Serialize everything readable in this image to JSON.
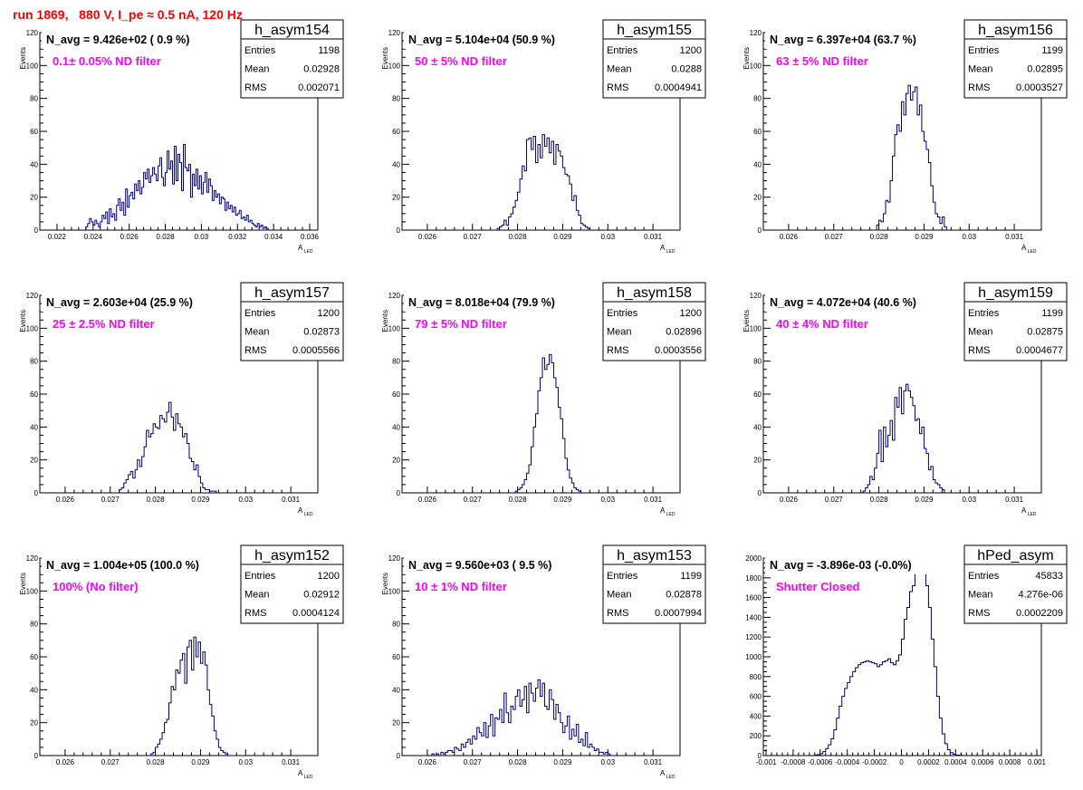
{
  "page": {
    "run_title": "run 1869,   880 V, I_pe ≈ 0.5 nA, 120 Hz"
  },
  "colors": {
    "histogram_line": "#000080",
    "annotation": "#ff00ff",
    "run_title": "#ff0000"
  },
  "chart_data": [
    {
      "type": "histogram",
      "title": "h_asym154",
      "navg_text": "N_avg = 9.426e+02 ( 0.9 %)",
      "annotation": "0.1± 0.05% ND filter",
      "xlabel": "A",
      "xlabel_sub": "LED",
      "ylabel": "Events",
      "xlim": [
        0.0212,
        0.0362
      ],
      "ylim": [
        0,
        120
      ],
      "xticks": [
        "0.022",
        "0.024",
        "0.026",
        "0.028",
        "0.03",
        "0.032",
        "0.034",
        "0.036"
      ],
      "xtick_values": [
        0.022,
        0.024,
        0.026,
        0.028,
        0.03,
        0.032,
        0.034,
        0.036
      ],
      "yticks": [
        "0",
        "20",
        "40",
        "60",
        "80",
        "100",
        "120"
      ],
      "yticks_values": [
        0,
        20,
        40,
        60,
        80,
        100,
        120
      ],
      "stats": [
        [
          "Entries",
          "1198"
        ],
        [
          "Mean",
          "0.02928"
        ],
        [
          "RMS",
          "0.002071"
        ]
      ],
      "x_start": 0.0236,
      "bin_width": 0.0001,
      "values": [
        2,
        4,
        7,
        5,
        3,
        6,
        4,
        2,
        5,
        9,
        7,
        11,
        4,
        13,
        8,
        10,
        6,
        15,
        19,
        12,
        17,
        9,
        25,
        14,
        21,
        23,
        19,
        28,
        24,
        30,
        22,
        26,
        35,
        31,
        37,
        29,
        33,
        38,
        34,
        30,
        39,
        44,
        32,
        27,
        35,
        48,
        37,
        42,
        28,
        51,
        30,
        46,
        41,
        24,
        52,
        38,
        36,
        40,
        20,
        34,
        27,
        37,
        25,
        33,
        22,
        29,
        35,
        23,
        31,
        27,
        18,
        24,
        20,
        22,
        16,
        20,
        19,
        12,
        17,
        13,
        15,
        11,
        14,
        9,
        10,
        12,
        7,
        8,
        6,
        9,
        5,
        6,
        4,
        3,
        2,
        4,
        2,
        3,
        1,
        2,
        1
      ]
    },
    {
      "type": "histogram",
      "title": "h_asym155",
      "navg_text": "N_avg = 5.104e+04 (50.9 %)",
      "annotation": "50 ± 5% ND filter",
      "xlabel": "A",
      "xlabel_sub": "LED",
      "ylabel": "Events",
      "xlim": [
        0.0255,
        0.0315
      ],
      "ylim": [
        0,
        120
      ],
      "xticks": [
        "0.026",
        "0.027",
        "0.028",
        "0.029",
        "0.03",
        "0.031"
      ],
      "xtick_values": [
        0.026,
        0.027,
        0.028,
        0.029,
        0.03,
        0.031
      ],
      "yticks": [
        "0",
        "20",
        "40",
        "60",
        "80",
        "100",
        "120"
      ],
      "yticks_values": [
        0,
        20,
        40,
        60,
        80,
        100,
        120
      ],
      "stats": [
        [
          "Entries",
          "1200"
        ],
        [
          "Mean",
          "0.0288"
        ],
        [
          "RMS",
          "0.0004941"
        ]
      ],
      "x_start": 0.02755,
      "bin_width": 5e-05,
      "values": [
        1,
        2,
        3,
        6,
        3,
        8,
        10,
        14,
        18,
        23,
        31,
        39,
        36,
        55,
        56,
        49,
        57,
        41,
        52,
        44,
        58,
        51,
        56,
        47,
        54,
        40,
        52,
        48,
        45,
        38,
        34,
        33,
        28,
        18,
        21,
        12,
        9,
        4,
        3,
        2,
        1
      ]
    },
    {
      "type": "histogram",
      "title": "h_asym156",
      "navg_text": "N_avg = 6.397e+04 (63.7 %)",
      "annotation": "63 ± 5% ND filter",
      "xlabel": "A",
      "xlabel_sub": "LED",
      "ylabel": "Events",
      "xlim": [
        0.0255,
        0.0315
      ],
      "ylim": [
        0,
        120
      ],
      "xticks": [
        "0.026",
        "0.027",
        "0.028",
        "0.029",
        "0.03",
        "0.031"
      ],
      "xtick_values": [
        0.026,
        0.027,
        0.028,
        0.029,
        0.03,
        0.031
      ],
      "yticks": [
        "0",
        "20",
        "40",
        "60",
        "80",
        "100",
        "120"
      ],
      "yticks_values": [
        0,
        20,
        40,
        60,
        80,
        100,
        120
      ],
      "stats": [
        [
          "Entries",
          "1199"
        ],
        [
          "Mean",
          "0.02895"
        ],
        [
          "RMS",
          "0.0003527"
        ]
      ],
      "x_start": 0.02795,
      "bin_width": 5e-05,
      "values": [
        3,
        6,
        5,
        10,
        18,
        17,
        30,
        45,
        58,
        64,
        60,
        78,
        70,
        83,
        88,
        79,
        84,
        87,
        70,
        76,
        60,
        54,
        49,
        41,
        27,
        17,
        10,
        8,
        4,
        8,
        2
      ]
    },
    {
      "type": "histogram",
      "title": "h_asym157",
      "navg_text": "N_avg = 2.603e+04 (25.9 %)",
      "annotation": "25 ± 2.5% ND filter",
      "xlabel": "A",
      "xlabel_sub": "LED",
      "ylabel": "Events",
      "xlim": [
        0.0255,
        0.0315
      ],
      "ylim": [
        0,
        120
      ],
      "xticks": [
        "0.026",
        "0.027",
        "0.028",
        "0.029",
        "0.03",
        "0.031"
      ],
      "xtick_values": [
        0.026,
        0.027,
        0.028,
        0.029,
        0.03,
        0.031
      ],
      "yticks": [
        "0",
        "20",
        "40",
        "60",
        "80",
        "100",
        "120"
      ],
      "yticks_values": [
        0,
        20,
        40,
        60,
        80,
        100,
        120
      ],
      "stats": [
        [
          "Entries",
          "1200"
        ],
        [
          "Mean",
          "0.02873"
        ],
        [
          "RMS",
          "0.0005566"
        ]
      ],
      "x_start": 0.0272,
      "bin_width": 5e-05,
      "values": [
        2,
        3,
        6,
        8,
        11,
        13,
        9,
        14,
        20,
        16,
        22,
        28,
        38,
        34,
        36,
        42,
        40,
        39,
        47,
        45,
        43,
        49,
        55,
        46,
        38,
        48,
        42,
        40,
        34,
        36,
        30,
        21,
        19,
        14,
        17,
        10,
        6,
        3,
        2,
        2,
        1,
        1,
        1
      ]
    },
    {
      "type": "histogram",
      "title": "h_asym158",
      "navg_text": "N_avg = 8.018e+04 (79.9 %)",
      "annotation": "79 ± 5% ND filter",
      "xlabel": "A",
      "xlabel_sub": "LED",
      "ylabel": "Events",
      "xlim": [
        0.0255,
        0.0315
      ],
      "ylim": [
        0,
        120
      ],
      "xticks": [
        "0.026",
        "0.027",
        "0.028",
        "0.029",
        "0.03",
        "0.031"
      ],
      "xtick_values": [
        0.026,
        0.027,
        0.028,
        0.029,
        0.03,
        0.031
      ],
      "yticks": [
        "0",
        "20",
        "40",
        "60",
        "80",
        "100",
        "120"
      ],
      "yticks_values": [
        0,
        20,
        40,
        60,
        80,
        100,
        120
      ],
      "stats": [
        [
          "Entries",
          "1200"
        ],
        [
          "Mean",
          "0.02896"
        ],
        [
          "RMS",
          "0.0003556"
        ]
      ],
      "x_start": 0.02795,
      "bin_width": 5e-05,
      "values": [
        1,
        2,
        3,
        5,
        8,
        12,
        17,
        28,
        40,
        48,
        62,
        70,
        82,
        75,
        78,
        84,
        79,
        70,
        64,
        52,
        45,
        33,
        21,
        14,
        9,
        6,
        3,
        2,
        1
      ]
    },
    {
      "type": "histogram",
      "title": "h_asym159",
      "navg_text": "N_avg = 4.072e+04 (40.6 %)",
      "annotation": "40 ± 4% ND filter",
      "xlabel": "A",
      "xlabel_sub": "LED",
      "ylabel": "Events",
      "xlim": [
        0.0255,
        0.0315
      ],
      "ylim": [
        0,
        120
      ],
      "xticks": [
        "0.026",
        "0.027",
        "0.028",
        "0.029",
        "0.03",
        "0.031"
      ],
      "xtick_values": [
        0.026,
        0.027,
        0.028,
        0.029,
        0.03,
        0.031
      ],
      "yticks": [
        "0",
        "20",
        "40",
        "60",
        "80",
        "100",
        "120"
      ],
      "yticks_values": [
        0,
        20,
        40,
        60,
        80,
        100,
        120
      ],
      "stats": [
        [
          "Entries",
          "1199"
        ],
        [
          "Mean",
          "0.02875"
        ],
        [
          "RMS",
          "0.0004677"
        ]
      ],
      "x_start": 0.02765,
      "bin_width": 5e-05,
      "values": [
        1,
        3,
        5,
        10,
        8,
        15,
        24,
        38,
        19,
        40,
        28,
        35,
        44,
        32,
        58,
        52,
        64,
        48,
        62,
        66,
        62,
        58,
        53,
        44,
        45,
        36,
        40,
        27,
        24,
        14,
        16,
        8,
        6,
        5,
        3,
        2
      ]
    },
    {
      "type": "histogram",
      "title": "h_asym152",
      "navg_text": "N_avg = 1.004e+05 (100.0 %)",
      "annotation": "100% (No filter)",
      "xlabel": "A",
      "xlabel_sub": "LED",
      "ylabel": "Events",
      "xlim": [
        0.0255,
        0.0315
      ],
      "ylim": [
        0,
        120
      ],
      "xticks": [
        "0.026",
        "0.027",
        "0.028",
        "0.029",
        "0.03",
        "0.031"
      ],
      "xtick_values": [
        0.026,
        0.027,
        0.028,
        0.029,
        0.03,
        0.031
      ],
      "yticks": [
        "0",
        "20",
        "40",
        "60",
        "80",
        "100",
        "120"
      ],
      "yticks_values": [
        0,
        20,
        40,
        60,
        80,
        100,
        120
      ],
      "stats": [
        [
          "Entries",
          "1200"
        ],
        [
          "Mean",
          "0.02912"
        ],
        [
          "RMS",
          "0.0004124"
        ]
      ],
      "x_start": 0.0279,
      "bin_width": 5e-05,
      "values": [
        1,
        2,
        5,
        7,
        10,
        14,
        20,
        22,
        32,
        42,
        40,
        52,
        50,
        58,
        62,
        44,
        66,
        70,
        52,
        72,
        60,
        69,
        56,
        63,
        55,
        40,
        31,
        24,
        15,
        10,
        5,
        3,
        2,
        1
      ]
    },
    {
      "type": "histogram",
      "title": "h_asym153",
      "navg_text": "N_avg = 9.560e+03 ( 9.5 %)",
      "annotation": "10 ± 1% ND filter",
      "xlabel": "A",
      "xlabel_sub": "LED",
      "ylabel": "Events",
      "xlim": [
        0.0255,
        0.0315
      ],
      "ylim": [
        0,
        120
      ],
      "xticks": [
        "0.026",
        "0.027",
        "0.028",
        "0.029",
        "0.03",
        "0.031"
      ],
      "xtick_values": [
        0.026,
        0.027,
        0.028,
        0.029,
        0.03,
        0.031
      ],
      "yticks": [
        "0",
        "20",
        "40",
        "60",
        "80",
        "100",
        "120"
      ],
      "yticks_values": [
        0,
        20,
        40,
        60,
        80,
        100,
        120
      ],
      "stats": [
        [
          "Entries",
          "1199"
        ],
        [
          "Mean",
          "0.02878"
        ],
        [
          "RMS",
          "0.0007994"
        ]
      ],
      "x_start": 0.0261,
      "bin_width": 5e-05,
      "values": [
        1,
        0,
        1,
        0,
        2,
        1,
        2,
        3,
        3,
        2,
        5,
        4,
        3,
        7,
        5,
        8,
        10,
        7,
        12,
        10,
        17,
        14,
        12,
        20,
        11,
        18,
        25,
        12,
        23,
        22,
        28,
        20,
        38,
        26,
        20,
        30,
        28,
        36,
        40,
        30,
        34,
        42,
        26,
        44,
        38,
        33,
        41,
        46,
        36,
        44,
        30,
        28,
        40,
        34,
        22,
        31,
        26,
        20,
        14,
        18,
        24,
        10,
        16,
        12,
        19,
        8,
        10,
        6,
        14,
        5,
        7,
        5,
        3,
        4,
        2,
        2,
        1,
        2,
        1
      ]
    },
    {
      "type": "histogram",
      "title": "hPed_asym",
      "navg_text": "N_avg = -3.896e-03 (-0.0%)",
      "annotation": "Shutter Closed",
      "xlabel": "",
      "xlabel_sub": "",
      "ylabel": "",
      "xlim": [
        -0.001,
        0.001
      ],
      "ylim": [
        0,
        2000
      ],
      "xticks": [
        "-0.001",
        "-0.0008",
        "-0.0006",
        "-0.0004",
        "-0.0002",
        "0",
        "0.0002",
        "0.0004",
        "0.0006",
        "0.0008",
        "0.001"
      ],
      "xtick_values": [
        -0.001,
        -0.0008,
        -0.0006,
        -0.0004,
        -0.0002,
        0,
        0.0002,
        0.0004,
        0.0006,
        0.0008,
        0.001
      ],
      "yticks": [
        "0",
        "200",
        "400",
        "600",
        "800",
        "1000",
        "1200",
        "1400",
        "1600",
        "1800",
        "2000"
      ],
      "yticks_values": [
        0,
        200,
        400,
        600,
        800,
        1000,
        1200,
        1400,
        1600,
        1800,
        2000
      ],
      "stats": [
        [
          "Entries",
          "45833"
        ],
        [
          "Mean",
          "4.276e-06"
        ],
        [
          "RMS",
          "0.0002209"
        ]
      ],
      "x_start": -0.00064,
      "bin_width": 2e-05,
      "values": [
        5,
        10,
        20,
        40,
        70,
        110,
        170,
        260,
        380,
        500,
        600,
        680,
        740,
        800,
        850,
        890,
        920,
        940,
        950,
        960,
        950,
        940,
        930,
        900,
        920,
        950,
        960,
        980,
        940,
        920,
        960,
        1020,
        1180,
        1380,
        1500,
        1660,
        1720,
        1860,
        1990,
        2000,
        1900,
        1720,
        1500,
        1180,
        900,
        600,
        380,
        220,
        120,
        60,
        30,
        14,
        6,
        3,
        1
      ]
    }
  ]
}
